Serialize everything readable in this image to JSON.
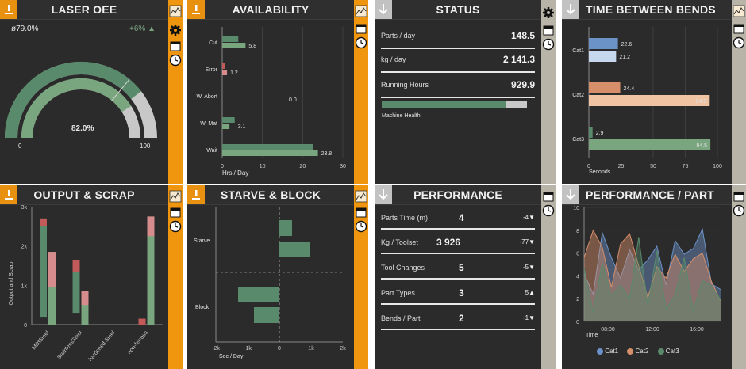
{
  "colors": {
    "green": "#5a8a6c",
    "greenLight": "#7aa67f",
    "red": "#c25a5a",
    "pink": "#d68c8c",
    "blue": "#6c93c8",
    "blueLight": "#c7d7ee",
    "salmon": "#d68f6a",
    "peach": "#f0c3a3",
    "orange": "#f0960e",
    "gray": "#c8c8c8"
  },
  "oee": {
    "title": "LASER OEE",
    "avg": "ø79.0%",
    "delta": "+6% ▲",
    "value_label": "82.0%",
    "value": 82,
    "outer_value": 79,
    "min": "0",
    "max": "100"
  },
  "availability": {
    "title": "AVAILABILITY",
    "xlabel": "Hrs / Day",
    "ticks": [
      "0",
      "10",
      "20",
      "30"
    ],
    "max": 30,
    "rows": [
      {
        "label": "Cut",
        "a": 4,
        "b": 5.8,
        "text": "5.8",
        "color": "green"
      },
      {
        "label": "Error",
        "a": 0.6,
        "b": 1.2,
        "text": "1.2",
        "color": "red"
      },
      {
        "label": "W. Abort",
        "a": 0,
        "b": 0,
        "text": "0.0",
        "color": "green"
      },
      {
        "label": "W. Mat",
        "a": 3.1,
        "b": 1.8,
        "text": "3.1",
        "color": "green"
      },
      {
        "label": "Wait",
        "a": 22.5,
        "b": 23.8,
        "text": "23.8",
        "color": "green"
      }
    ]
  },
  "status": {
    "title": "STATUS",
    "rows": [
      {
        "label": "Parts / day",
        "value": "148.5"
      },
      {
        "label": "kg / day",
        "value": "2 141.3"
      },
      {
        "label": "Running Hours",
        "value": "929.9"
      }
    ],
    "health_label": "Machine Health",
    "health": 0.85
  },
  "tbb": {
    "title": "TIME BETWEEN BENDS",
    "xlabel": "Seconds",
    "ticks": [
      "0",
      "25",
      "50",
      "75",
      "100"
    ],
    "max": 100,
    "cats": [
      {
        "label": "Cat1",
        "a": 22.6,
        "b": 21.2,
        "ta": "22.6",
        "tb": "21.2",
        "ca": "blue",
        "cb": "blueLight"
      },
      {
        "label": "Cat2",
        "a": 24.4,
        "b": 94.0,
        "ta": "24.4",
        "tb": "94.0",
        "ca": "salmon",
        "cb": "peach"
      },
      {
        "label": "Cat3",
        "a": 2.9,
        "b": 94.5,
        "ta": "2.9",
        "tb": "94.5",
        "ca": "green",
        "cb": "greenLight"
      }
    ]
  },
  "output": {
    "title": "OUTPUT & SCRAP",
    "ylabel": "Output and Scrap",
    "yticks": [
      "0",
      "1k",
      "2k",
      "3k"
    ],
    "max": 3000,
    "groups": [
      {
        "label": "MildSteel",
        "a": 2700,
        "as": 200,
        "b": 1850,
        "bs": 900
      },
      {
        "label": "StainlessSteel",
        "a": 1650,
        "as": 300,
        "b": 850,
        "bs": 350
      },
      {
        "label": "hardened Steel",
        "a": 0,
        "as": 0,
        "b": 0,
        "bs": 0
      },
      {
        "label": "non-ferrous",
        "a": 150,
        "as": 150,
        "b": 2750,
        "bs": 500
      }
    ]
  },
  "starve": {
    "title": "STARVE & BLOCK",
    "xlabel": "Sec / Day",
    "ticks": [
      "-2k",
      "-1k",
      "0",
      "1k",
      "2k"
    ],
    "min": -2000,
    "max": 2000,
    "labels": [
      "Starve",
      "Block"
    ],
    "bars": [
      {
        "from": 0,
        "to": 400
      },
      {
        "from": 0,
        "to": 950
      },
      {
        "from": -1300,
        "to": 0
      },
      {
        "from": -800,
        "to": 0
      }
    ]
  },
  "performance": {
    "title": "PERFORMANCE",
    "rows": [
      {
        "label": "Parts Time (m)",
        "value": "4",
        "delta": "-4▼"
      },
      {
        "label": "Kg / Toolset",
        "value": "3 926",
        "delta": "-77▼"
      },
      {
        "label": "Tool Changes",
        "value": "5",
        "delta": "-5▼"
      },
      {
        "label": "Part Types",
        "value": "3",
        "delta": "5▲"
      },
      {
        "label": "Bends / Part",
        "value": "2",
        "delta": "-1▼"
      }
    ]
  },
  "perfpart": {
    "title": "PERFORMANCE / PART",
    "yticks": [
      "0",
      "2",
      "4",
      "6",
      "8",
      "10"
    ],
    "xticks": [
      "08:00",
      "12:00",
      "16:00"
    ],
    "xlabel": "Time",
    "legend": [
      "Cat1",
      "Cat2",
      "Cat3"
    ],
    "series": [
      {
        "name": "Cat1",
        "color": "blue",
        "values": [
          4.2,
          2.4,
          7.8,
          5.6,
          3.8,
          6.3,
          4.5,
          5.4,
          6.6,
          3.2,
          7.1,
          5.9,
          6.4,
          8.1,
          3.3,
          2.8
        ]
      },
      {
        "name": "Cat2",
        "color": "salmon",
        "values": [
          5.6,
          8.0,
          6.5,
          3.0,
          6.8,
          7.7,
          4.9,
          2.1,
          4.8,
          3.8,
          5.9,
          4.4,
          5.5,
          6.0,
          3.5,
          1.8
        ]
      },
      {
        "name": "Cat3",
        "color": "green",
        "values": [
          4.7,
          0.8,
          5.1,
          2.2,
          3.2,
          2.0,
          7.4,
          1.4,
          6.2,
          1.1,
          2.3,
          5.6,
          0.9,
          3.6,
          3.1,
          1.9
        ]
      }
    ]
  }
}
